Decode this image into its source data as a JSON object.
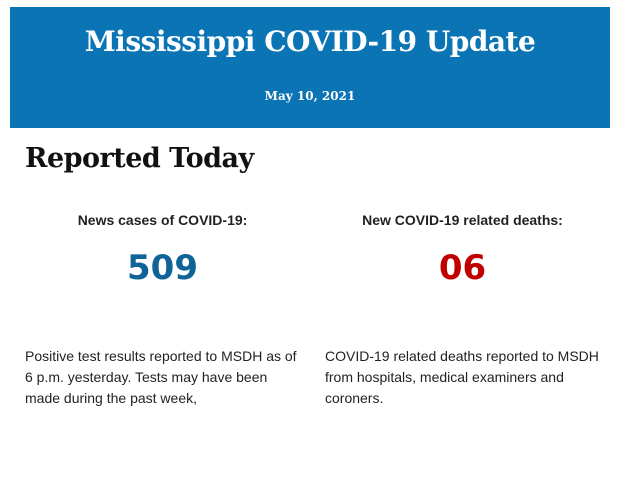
{
  "header": {
    "title": "Mississippi COVID-19 Update",
    "date": "May 10, 2021",
    "background_color": "#0a74b4"
  },
  "section": {
    "title": "Reported Today"
  },
  "cases": {
    "label": "News cases of COVID-19:",
    "value": "509",
    "color": "#0f6396",
    "description": "Positive test results reported to MSDH as of 6 p.m. yesterday. Tests may have been made during the past week,"
  },
  "deaths": {
    "label": "New COVID-19 related deaths:",
    "value": "06",
    "color": "#c00000",
    "description": "COVID-19 related deaths reported to MSDH from hospitals, medical examiners and coroners."
  }
}
